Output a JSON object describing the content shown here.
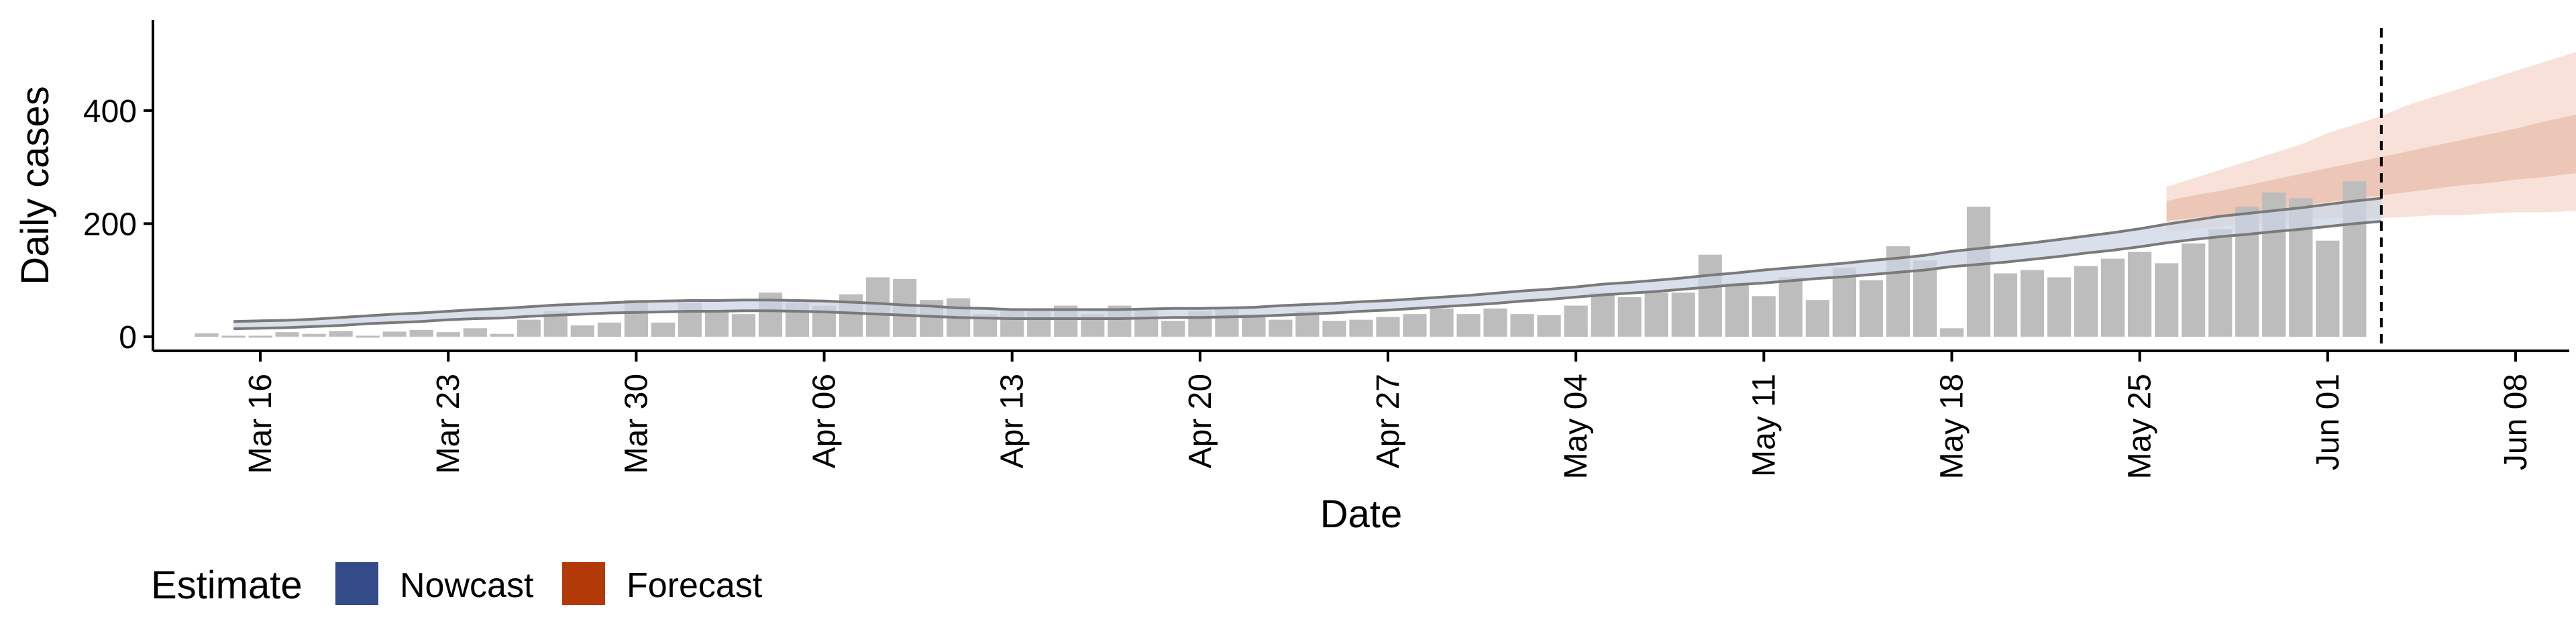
{
  "chart_data": {
    "type": "bar",
    "xlabel": "Date",
    "ylabel": "Daily cases",
    "xlim": [
      "2020-03-12",
      "2020-06-10"
    ],
    "ylim": [
      -25,
      560
    ],
    "yticks": [
      0,
      200,
      400
    ],
    "xticks": [
      {
        "date": "2020-03-16",
        "label": "Mar 16"
      },
      {
        "date": "2020-03-23",
        "label": "Mar 23"
      },
      {
        "date": "2020-03-30",
        "label": "Mar 30"
      },
      {
        "date": "2020-04-06",
        "label": "Apr 06"
      },
      {
        "date": "2020-04-13",
        "label": "Apr 13"
      },
      {
        "date": "2020-04-20",
        "label": "Apr 20"
      },
      {
        "date": "2020-04-27",
        "label": "Apr 27"
      },
      {
        "date": "2020-05-04",
        "label": "May 04"
      },
      {
        "date": "2020-05-11",
        "label": "May 11"
      },
      {
        "date": "2020-05-18",
        "label": "May 18"
      },
      {
        "date": "2020-05-25",
        "label": "May 25"
      },
      {
        "date": "2020-06-01",
        "label": "Jun 01"
      },
      {
        "date": "2020-06-08",
        "label": "Jun 08"
      }
    ],
    "grid": false,
    "legend_position": "bottom-left",
    "cases": {
      "start_date": "2020-03-14",
      "values": [
        6,
        0,
        0,
        8,
        5,
        10,
        0,
        9,
        12,
        8,
        15,
        5,
        30,
        45,
        20,
        25,
        65,
        25,
        60,
        45,
        40,
        78,
        60,
        55,
        75,
        105,
        102,
        65,
        68,
        40,
        45,
        45,
        55,
        40,
        55,
        45,
        28,
        45,
        50,
        40,
        30,
        45,
        28,
        30,
        35,
        40,
        50,
        40,
        50,
        40,
        38,
        55,
        78,
        70,
        78,
        78,
        145,
        95,
        72,
        105,
        65,
        122,
        100,
        160,
        135,
        15,
        230,
        112,
        118,
        105,
        125,
        138,
        150,
        130,
        165,
        190,
        230,
        255,
        245,
        170,
        275
      ]
    },
    "nowcast": {
      "start_date": "2020-03-15",
      "mid": [
        20,
        21,
        22,
        24,
        26,
        29,
        32,
        34,
        37,
        40,
        41,
        44,
        46,
        49,
        51,
        52,
        53,
        54,
        54,
        55,
        55,
        54,
        54,
        52,
        50,
        47,
        45,
        42,
        41,
        40,
        40,
        40,
        40,
        40,
        41,
        42,
        42,
        43,
        44,
        46,
        48,
        50,
        53,
        55,
        58,
        61,
        64,
        68,
        72,
        75,
        79,
        83,
        86,
        90,
        94,
        98,
        102,
        106,
        110,
        114,
        118,
        122,
        126,
        131,
        137,
        142,
        146,
        151,
        157,
        163,
        168,
        175,
        183,
        190,
        196,
        200,
        205,
        210,
        215,
        220,
        225
      ],
      "lower": [
        14,
        15,
        16,
        18,
        20,
        23,
        25,
        27,
        30,
        32,
        33,
        36,
        38,
        40,
        42,
        43,
        44,
        45,
        45,
        46,
        46,
        45,
        44,
        42,
        40,
        38,
        36,
        34,
        33,
        32,
        32,
        32,
        32,
        32,
        33,
        34,
        34,
        35,
        36,
        38,
        40,
        42,
        45,
        47,
        50,
        53,
        56,
        59,
        63,
        66,
        70,
        74,
        77,
        80,
        84,
        88,
        92,
        95,
        99,
        103,
        106,
        110,
        114,
        118,
        124,
        128,
        132,
        137,
        142,
        148,
        153,
        159,
        166,
        172,
        177,
        181,
        186,
        190,
        195,
        200,
        204
      ],
      "upper": [
        27,
        28,
        29,
        31,
        34,
        37,
        40,
        42,
        45,
        48,
        50,
        53,
        56,
        58,
        60,
        62,
        63,
        64,
        64,
        65,
        65,
        64,
        63,
        61,
        59,
        56,
        54,
        51,
        50,
        48,
        48,
        48,
        48,
        48,
        49,
        50,
        50,
        51,
        52,
        55,
        57,
        59,
        62,
        64,
        67,
        70,
        73,
        77,
        81,
        84,
        88,
        93,
        96,
        100,
        104,
        109,
        113,
        118,
        122,
        126,
        130,
        135,
        139,
        144,
        151,
        156,
        161,
        166,
        172,
        178,
        184,
        191,
        199,
        206,
        213,
        218,
        223,
        228,
        234,
        240,
        245
      ]
    },
    "forecast": {
      "start_date": "2020-05-26",
      "outer_lower": [
        185,
        190,
        195,
        200,
        200,
        205,
        210,
        210,
        210,
        212,
        215,
        215,
        218,
        220,
        220,
        222,
        225,
        228,
        228
      ],
      "outer_upper": [
        265,
        280,
        295,
        310,
        325,
        340,
        360,
        375,
        390,
        410,
        425,
        440,
        455,
        470,
        485,
        500,
        515,
        525,
        530
      ],
      "inner_lower": [
        205,
        210,
        215,
        220,
        225,
        232,
        238,
        245,
        250,
        256,
        262,
        268,
        272,
        278,
        282,
        288,
        292,
        296,
        300
      ],
      "inner_upper": [
        240,
        250,
        258,
        268,
        278,
        288,
        298,
        308,
        318,
        328,
        338,
        348,
        358,
        368,
        380,
        390,
        400,
        410,
        420
      ]
    },
    "vline_date": "2020-06-03",
    "legend": {
      "title": "Estimate",
      "items": [
        {
          "label": "Nowcast",
          "color": "#344b8a"
        },
        {
          "label": "Forecast",
          "color": "#b33a08"
        }
      ]
    },
    "colors": {
      "bar": "#bdbdbd",
      "nowcast_band": "#ccd5e6",
      "nowcast_line": "#7a7a7a",
      "forecast_outer": "#f7e1d8",
      "forecast_inner": "#ecc6b6",
      "vline": "#000000",
      "axis": "#000000"
    }
  }
}
